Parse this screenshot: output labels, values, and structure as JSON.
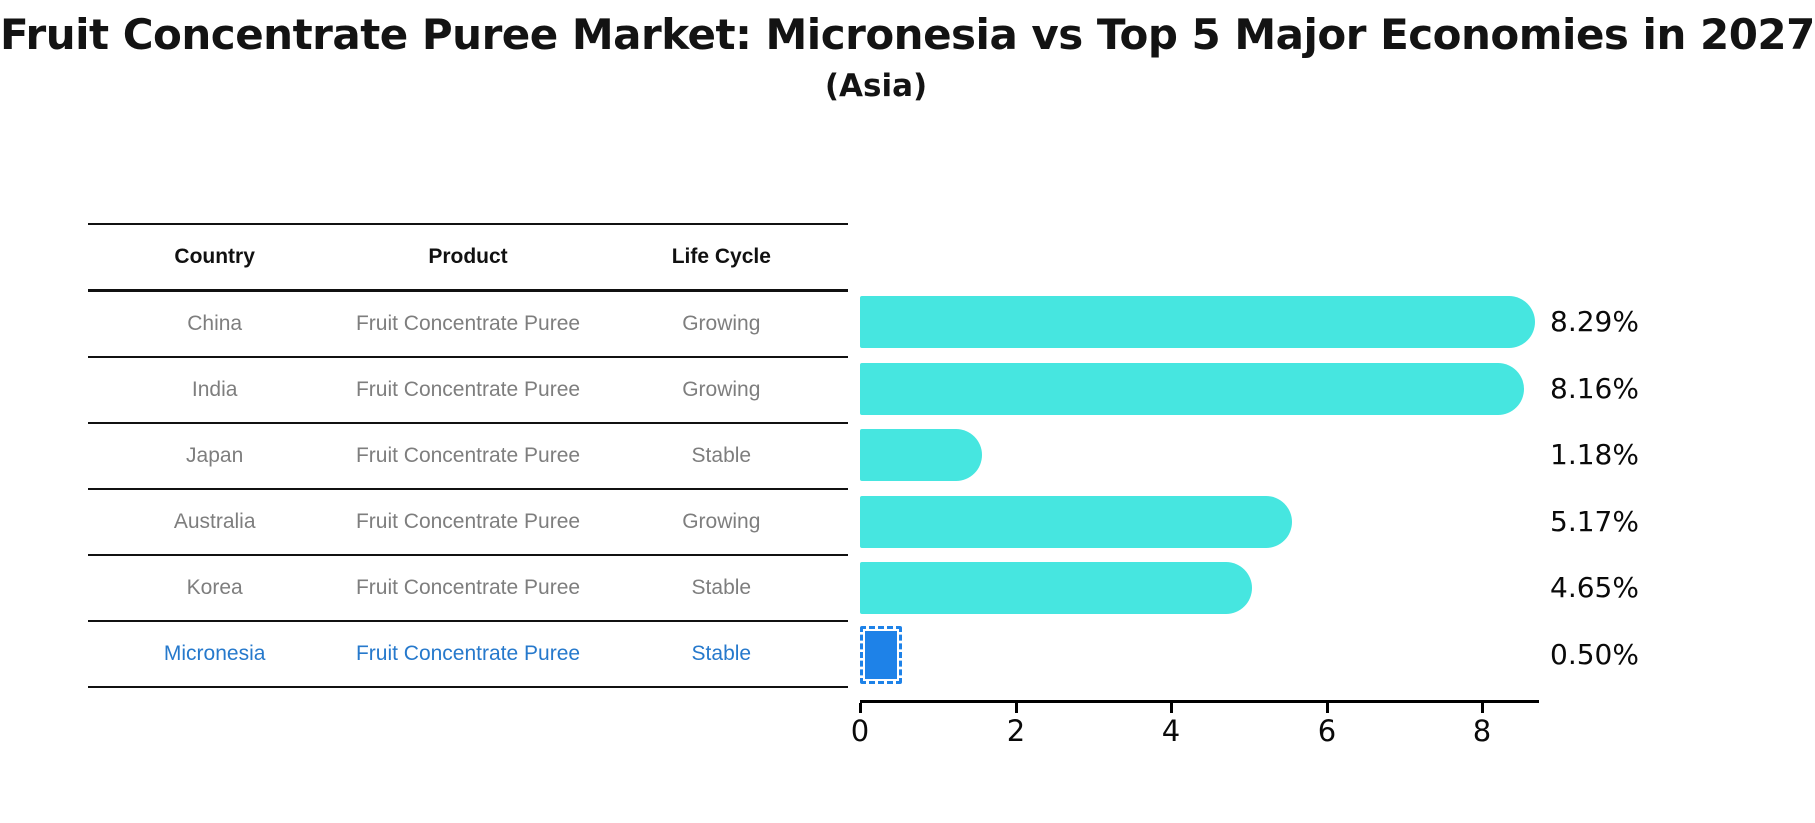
{
  "title": "Fruit Concentrate Puree Market: Micronesia vs Top 5 Major Economies in 2027",
  "subtitle": "(Asia)",
  "table": {
    "headers": [
      "Country",
      "Product",
      "Life Cycle"
    ],
    "rows": [
      {
        "country": "China",
        "product": "Fruit Concentrate Puree",
        "life_cycle": "Growing",
        "highlight": false
      },
      {
        "country": "India",
        "product": "Fruit Concentrate Puree",
        "life_cycle": "Growing",
        "highlight": false
      },
      {
        "country": "Japan",
        "product": "Fruit Concentrate Puree",
        "life_cycle": "Stable",
        "highlight": false
      },
      {
        "country": "Australia",
        "product": "Fruit Concentrate Puree",
        "life_cycle": "Growing",
        "highlight": false
      },
      {
        "country": "Korea",
        "product": "Fruit Concentrate Puree",
        "life_cycle": "Stable",
        "highlight": false
      },
      {
        "country": "Micronesia",
        "product": "Fruit Concentrate Puree",
        "life_cycle": "Stable",
        "highlight": true
      }
    ]
  },
  "chart_data": {
    "type": "bar",
    "orientation": "horizontal",
    "title": "Fruit Concentrate Puree Market: Micronesia vs Top 5 Major Economies in 2027 (Asia)",
    "categories": [
      "China",
      "India",
      "Japan",
      "Australia",
      "Korea",
      "Micronesia"
    ],
    "values": [
      8.29,
      8.16,
      1.18,
      5.17,
      4.65,
      0.5
    ],
    "value_labels": [
      "8.29%",
      "8.16%",
      "1.18%",
      "5.17%",
      "4.65%",
      "0.50%"
    ],
    "xticks": [
      0,
      2,
      4,
      6,
      8
    ],
    "xlim": [
      0,
      8.7
    ],
    "xlabel": "",
    "ylabel": "",
    "grid": false,
    "legend": false,
    "bar_color": "#46E6E0",
    "highlight_bar_color": "#1E82E8",
    "highlight_text_color": "#2679CC"
  },
  "colors": {
    "background": "#ffffff",
    "table_text": "#7e7e7e",
    "header_text": "#111111",
    "axis": "#000000"
  }
}
